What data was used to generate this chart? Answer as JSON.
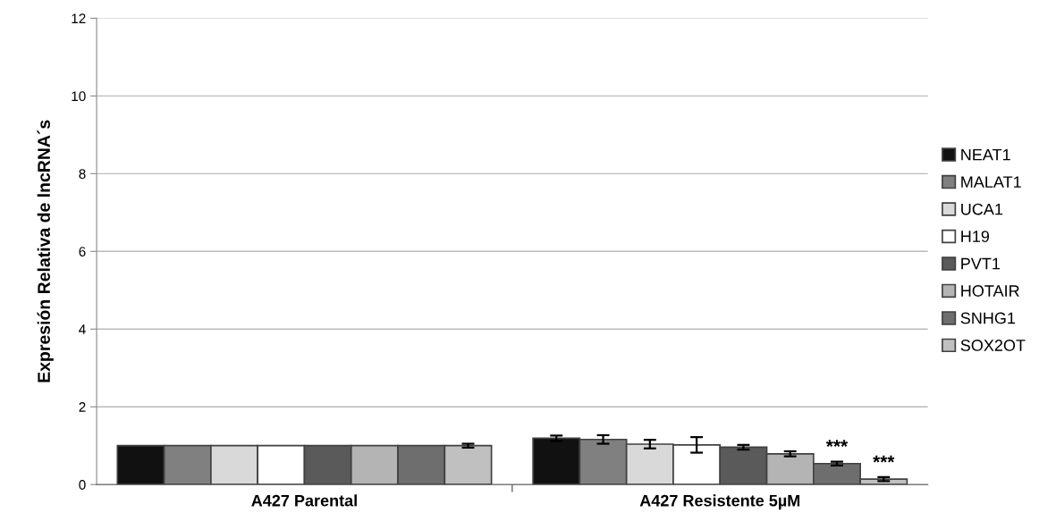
{
  "chart_data": {
    "type": "bar",
    "ylabel": "Expresión Relativa de lncRNA´s",
    "categories": [
      "A427 Parental",
      "A427 Resistente 5µM"
    ],
    "series": [
      {
        "name": "NEAT1",
        "color": "#111111",
        "values": [
          1,
          1.19
        ],
        "errors": [
          null,
          0.07
        ]
      },
      {
        "name": "MALAT1",
        "color": "#808080",
        "values": [
          1,
          1.16
        ],
        "errors": [
          null,
          0.11
        ]
      },
      {
        "name": "UCA1",
        "color": "#d9d9d9",
        "values": [
          1,
          1.04
        ],
        "errors": [
          null,
          0.11
        ]
      },
      {
        "name": "H19",
        "color": "#ffffff",
        "values": [
          1,
          1.02
        ],
        "errors": [
          null,
          0.2
        ]
      },
      {
        "name": "PVT1",
        "color": "#5a5a5a",
        "values": [
          1,
          0.96
        ],
        "errors": [
          null,
          0.06
        ]
      },
      {
        "name": "HOTAIR",
        "color": "#b4b4b4",
        "values": [
          1,
          0.79
        ],
        "errors": [
          null,
          0.065
        ]
      },
      {
        "name": "SNHG1",
        "color": "#6e6e6e",
        "values": [
          1,
          0.54
        ],
        "errors": [
          null,
          0.05
        ],
        "value_labels": [
          null,
          "***"
        ]
      },
      {
        "name": "SOX2OT",
        "color": "#c0c0c0",
        "values": [
          1,
          0.14
        ],
        "errors": [
          0.05,
          0.05
        ],
        "value_labels": [
          null,
          "***"
        ]
      }
    ],
    "ylim": [
      0,
      12
    ],
    "yticks": [
      0,
      2,
      4,
      6,
      8,
      10,
      12
    ],
    "grid": "y",
    "legend": "right"
  }
}
